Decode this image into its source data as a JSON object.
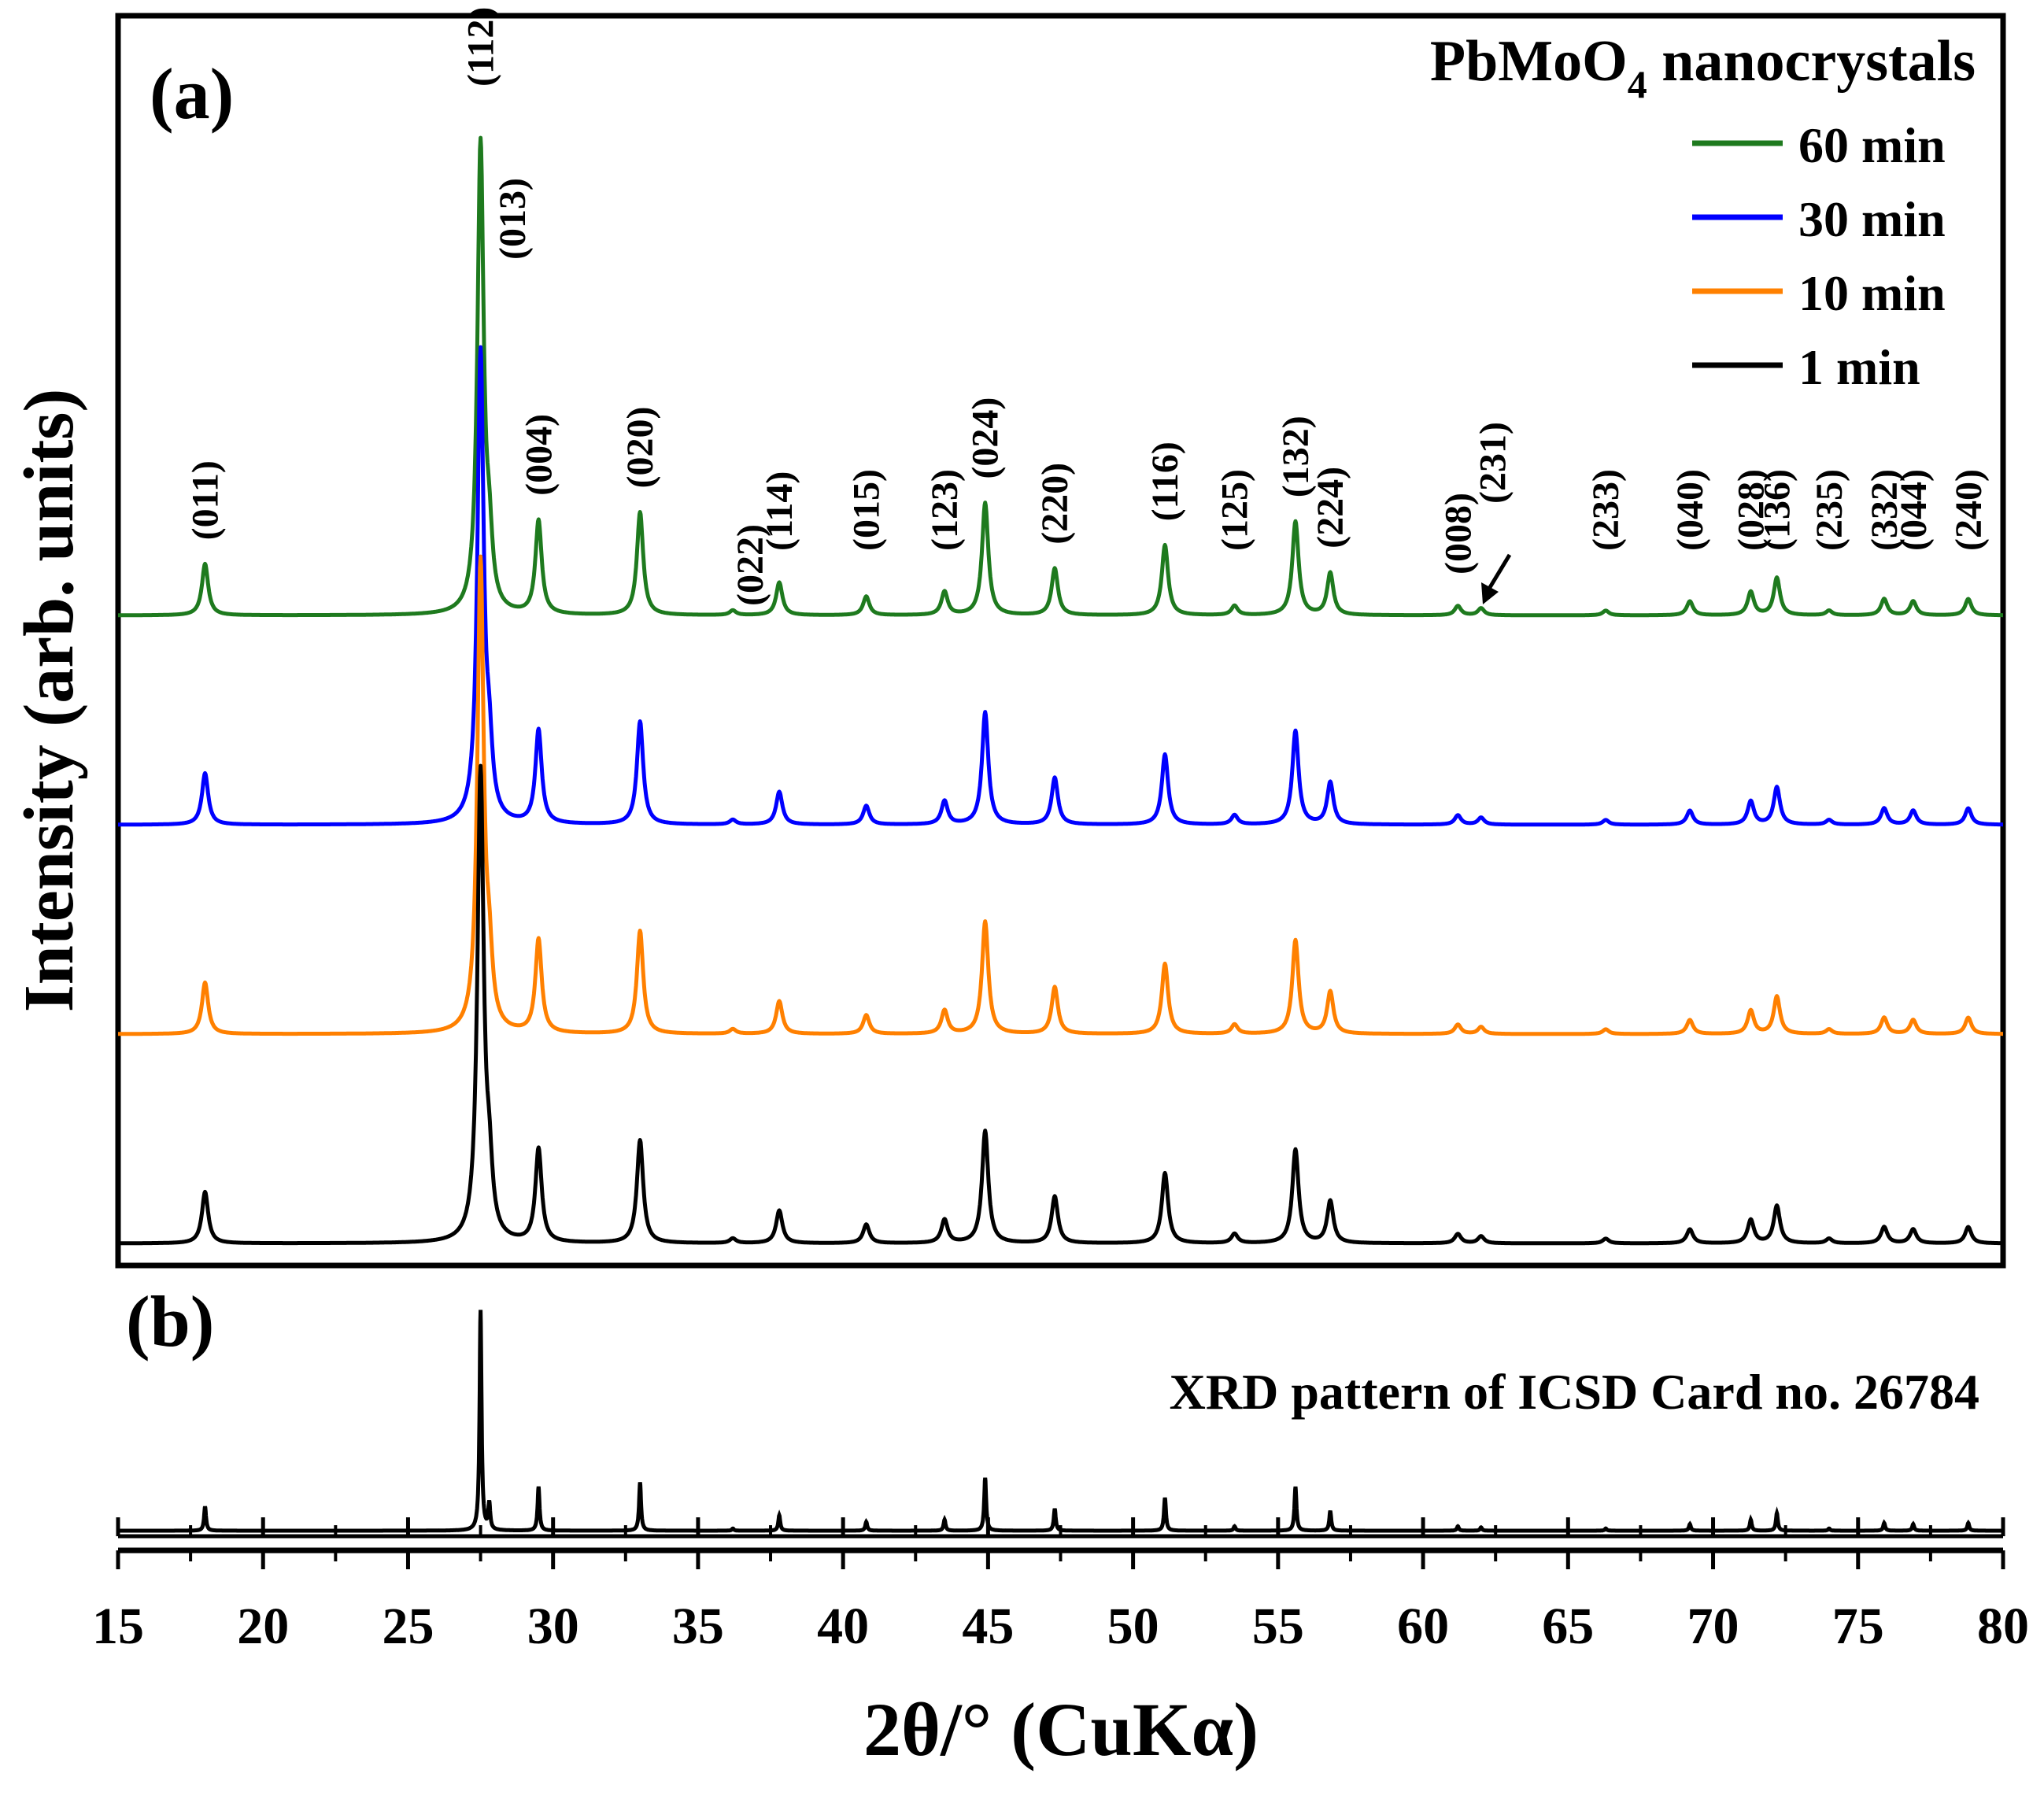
{
  "chart_data": {
    "type": "line",
    "panels": [
      {
        "id": "a",
        "label": "(a)",
        "title": "PbMoO",
        "title_subscript": "4",
        "title_suffix": " nanocrystals",
        "xlabel": "2θ/° (CuKα)",
        "ylabel": "Intensity (arb. units)",
        "xlim": [
          15,
          80
        ],
        "legend_position": "top-right",
        "series": [
          {
            "name": "60 min",
            "color": "#1e7a1e",
            "offset": 3,
            "scale": 1.0
          },
          {
            "name": "30 min",
            "color": "#0000ff",
            "offset": 2,
            "scale": 1.0
          },
          {
            "name": "10 min",
            "color": "#ff8000",
            "offset": 1,
            "scale": 1.0
          },
          {
            "name": "1 min",
            "color": "#000000",
            "offset": 0,
            "scale": 1.0
          }
        ],
        "peaks": [
          {
            "hkl": "(011)",
            "x": 18.0,
            "h": 0.11
          },
          {
            "hkl": "(112)",
            "x": 27.5,
            "h": 1.0
          },
          {
            "hkl": "(013)",
            "x": 27.8,
            "h": 0.12
          },
          {
            "hkl": "(004)",
            "x": 29.5,
            "h": 0.2
          },
          {
            "hkl": "(020)",
            "x": 33.0,
            "h": 0.22
          },
          {
            "hkl": "(022)",
            "x": 36.2,
            "h": 0.01
          },
          {
            "hkl": "(114)",
            "x": 37.8,
            "h": 0.07
          },
          {
            "hkl": "(015)",
            "x": 40.8,
            "h": 0.04
          },
          {
            "hkl": "(123)",
            "x": 43.5,
            "h": 0.05
          },
          {
            "hkl": "(024)",
            "x": 44.9,
            "h": 0.24
          },
          {
            "hkl": "(220)",
            "x": 47.3,
            "h": 0.1
          },
          {
            "hkl": "(116)",
            "x": 51.1,
            "h": 0.15
          },
          {
            "hkl": "(125)",
            "x": 53.5,
            "h": 0.02
          },
          {
            "hkl": "(132)",
            "x": 55.6,
            "h": 0.2
          },
          {
            "hkl": "(224)",
            "x": 56.8,
            "h": 0.09
          },
          {
            "hkl": "(008)",
            "x": 61.2,
            "h": 0.02
          },
          {
            "hkl": "(231)",
            "x": 62.0,
            "h": 0.015
          },
          {
            "hkl": "(233)",
            "x": 66.3,
            "h": 0.01
          },
          {
            "hkl": "(040)",
            "x": 69.2,
            "h": 0.03
          },
          {
            "hkl": "(028)",
            "x": 71.3,
            "h": 0.05
          },
          {
            "hkl": "(136)",
            "x": 72.2,
            "h": 0.08
          },
          {
            "hkl": "(235)",
            "x": 74.0,
            "h": 0.01
          },
          {
            "hkl": "(332)",
            "x": 75.9,
            "h": 0.035
          },
          {
            "hkl": "(044)",
            "x": 76.9,
            "h": 0.03
          },
          {
            "hkl": "(240)",
            "x": 78.8,
            "h": 0.035
          }
        ]
      },
      {
        "id": "b",
        "label": "(b)",
        "annotation": "XRD pattern of ICSD Card no. 26784",
        "series": [
          {
            "name": "ICSD 26784",
            "color": "#000000"
          }
        ]
      }
    ],
    "xticks": [
      15,
      20,
      25,
      30,
      35,
      40,
      45,
      50,
      55,
      60,
      65,
      70,
      75,
      80
    ]
  }
}
